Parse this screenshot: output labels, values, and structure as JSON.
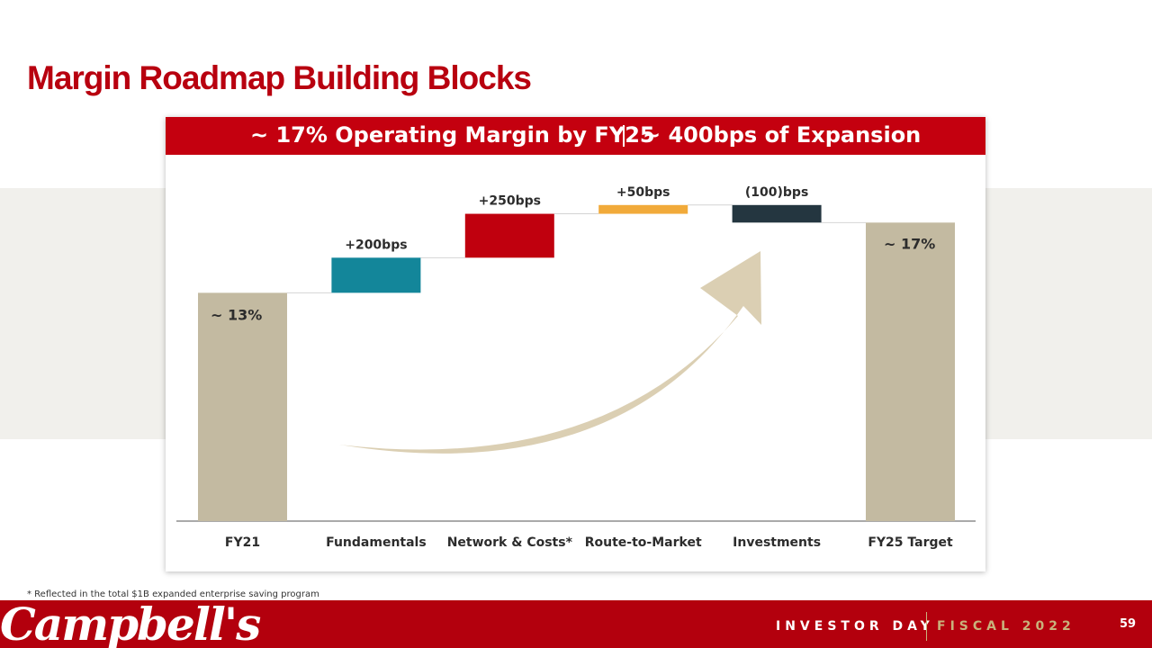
{
  "title": "Margin Roadmap Building Blocks",
  "banner": {
    "left_text": "~ 17% Operating Margin by FY25",
    "right_text": "~ 400bps of Expansion"
  },
  "chart_data": {
    "type": "waterfall",
    "unit": "% operating margin",
    "categories": [
      "FY21",
      "Fundamentals",
      "Network & Costs*",
      "Route-to-Market",
      "Investments",
      "FY25 Target"
    ],
    "steps": [
      {
        "category": "FY21",
        "kind": "total",
        "start": 0,
        "end": 13,
        "label": "~ 13%"
      },
      {
        "category": "Fundamentals",
        "kind": "increase",
        "start": 13,
        "end": 15,
        "label": "+200bps"
      },
      {
        "category": "Network & Costs*",
        "kind": "increase",
        "start": 15,
        "end": 17.5,
        "label": "+250bps"
      },
      {
        "category": "Route-to-Market",
        "kind": "increase",
        "start": 17.5,
        "end": 18,
        "label": "+50bps"
      },
      {
        "category": "Investments",
        "kind": "decrease",
        "start": 18,
        "end": 17,
        "label": "(100)bps"
      },
      {
        "category": "FY25 Target",
        "kind": "total",
        "start": 0,
        "end": 17,
        "label": "~ 17%"
      }
    ],
    "ylim": [
      0,
      18.4
    ],
    "colors": {
      "total": "#c3baa1",
      "Fundamentals": "#13869a",
      "Network & Costs*": "#c0000e",
      "Route-to-Market": "#f1aa3a",
      "Investments": "#243640",
      "arrow": "#d9ccaf"
    }
  },
  "footnote": "* Reflected in the total $1B expanded enterprise saving program",
  "footer": {
    "logo_text": "Campbell's",
    "left_text": "INVESTOR DAY",
    "right_text": "FISCAL 2022",
    "page_number": "59"
  }
}
